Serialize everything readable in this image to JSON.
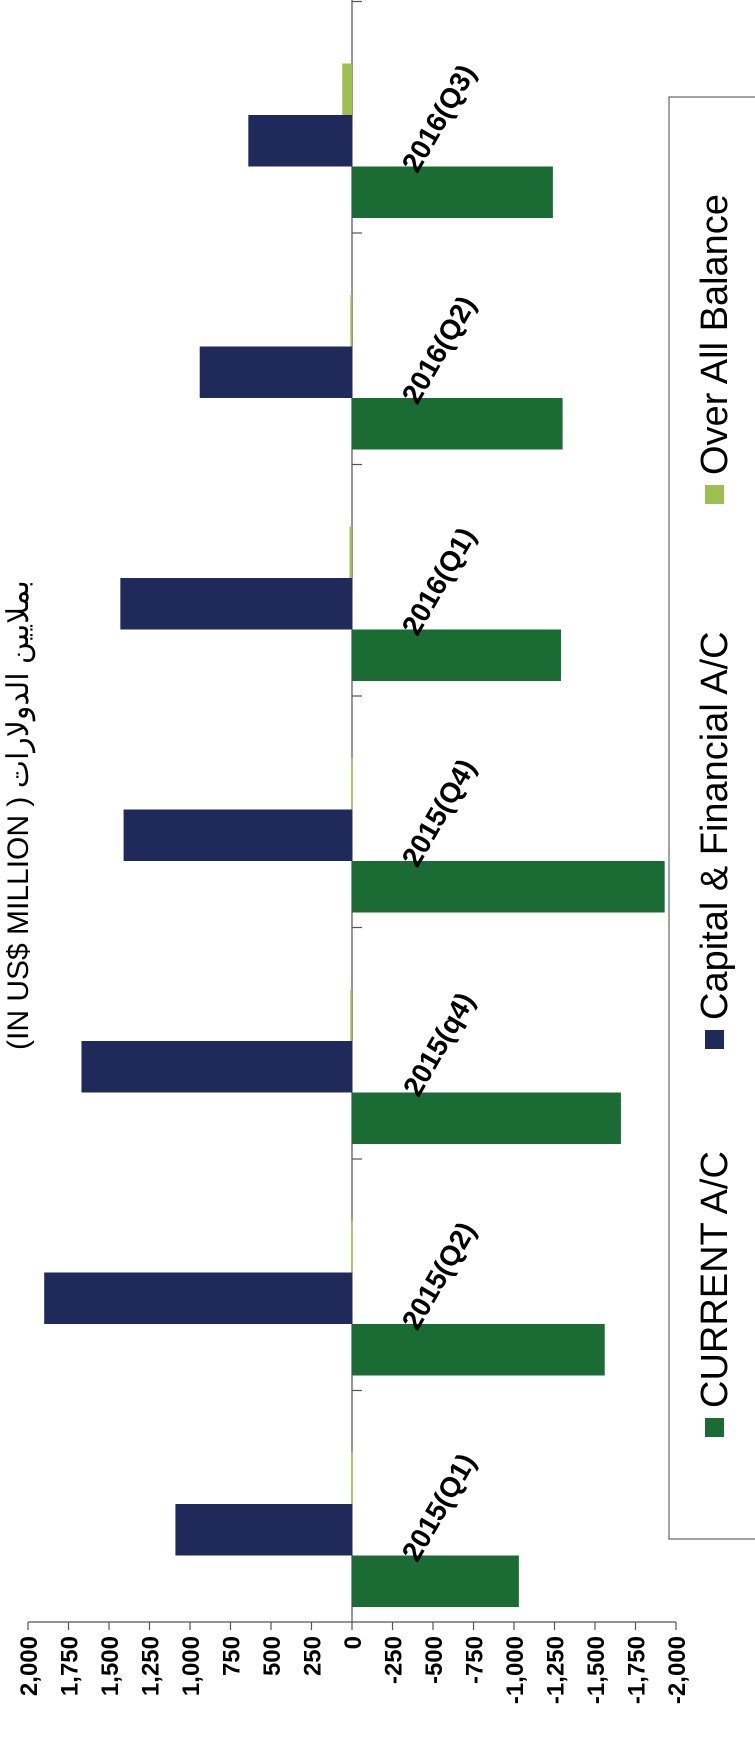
{
  "chart_data": {
    "type": "bar",
    "title": "(IN US$ MILLION ) بملايين الدولارات",
    "categories": [
      "2015(Q1)",
      "2015(Q2)",
      "2015(q4)",
      "2015(Q4)",
      "2016(Q1)",
      "2016(Q2)",
      "2016(Q3)"
    ],
    "series": [
      {
        "name": "CURRENT A/C",
        "color": "#1b6b35",
        "values": [
          -1030,
          -1560,
          -1660,
          -1930,
          -1290,
          -1300,
          -1240
        ]
      },
      {
        "name": "Capital & Financial A/C",
        "color": "#1f2a5a",
        "values": [
          1090,
          1900,
          1670,
          1410,
          1430,
          940,
          640
        ]
      },
      {
        "name": "Over All Balance",
        "color": "#9cbf4f",
        "values": [
          5,
          5,
          10,
          5,
          15,
          10,
          60
        ]
      }
    ],
    "ylim": [
      -2000,
      2000
    ],
    "yticks": [
      "2,000",
      "1,750",
      "1,500",
      "1,250",
      "1,000",
      "750",
      "500",
      "250",
      "0",
      "-250",
      "-500",
      "-750",
      "-1,000",
      "-1,250",
      "-1,500",
      "-1,750",
      "-2,000"
    ],
    "legend_position": "right",
    "grid": false
  }
}
